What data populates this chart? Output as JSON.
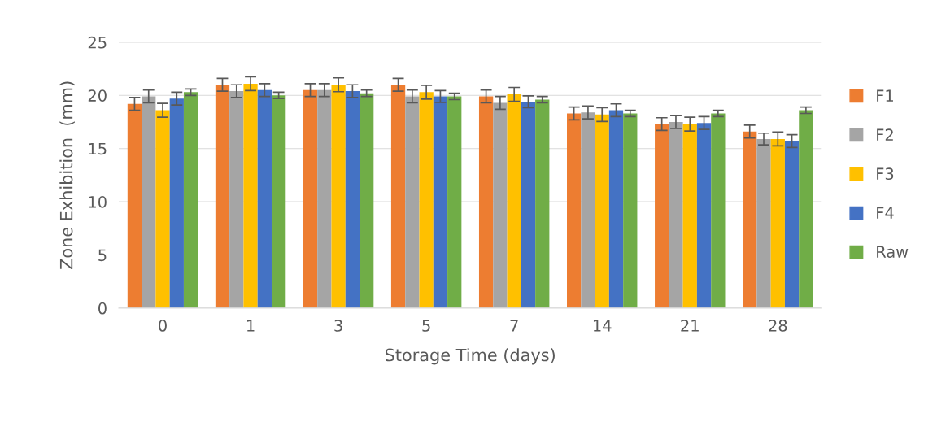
{
  "chart_data": {
    "type": "bar",
    "xlabel": "Storage Time (days)",
    "ylabel": "Zone Exhibition  (mm)",
    "categories": [
      "0",
      "1",
      "3",
      "5",
      "7",
      "14",
      "21",
      "28"
    ],
    "series": [
      {
        "name": "F1",
        "color": "#ed7d31",
        "values": [
          19.2,
          21.0,
          20.5,
          21.0,
          19.9,
          18.3,
          17.3,
          16.6
        ],
        "errors": [
          0.6,
          0.6,
          0.6,
          0.6,
          0.6,
          0.6,
          0.6,
          0.6
        ]
      },
      {
        "name": "F2",
        "color": "#a5a5a5",
        "values": [
          19.9,
          20.4,
          20.5,
          19.9,
          19.3,
          18.4,
          17.5,
          15.9
        ],
        "errors": [
          0.6,
          0.6,
          0.6,
          0.6,
          0.6,
          0.6,
          0.6,
          0.55
        ]
      },
      {
        "name": "F3",
        "color": "#ffc000",
        "values": [
          18.6,
          21.1,
          21.0,
          20.3,
          20.1,
          18.2,
          17.3,
          15.9
        ],
        "errors": [
          0.65,
          0.65,
          0.65,
          0.65,
          0.65,
          0.65,
          0.65,
          0.65
        ]
      },
      {
        "name": "F4",
        "color": "#4472c4",
        "values": [
          19.7,
          20.5,
          20.4,
          19.9,
          19.4,
          18.6,
          17.4,
          15.7
        ],
        "errors": [
          0.6,
          0.6,
          0.6,
          0.55,
          0.55,
          0.6,
          0.6,
          0.6
        ]
      },
      {
        "name": "Raw",
        "color": "#70ad47",
        "values": [
          20.3,
          20.0,
          20.2,
          19.9,
          19.6,
          18.3,
          18.3,
          18.6
        ],
        "errors": [
          0.3,
          0.3,
          0.3,
          0.3,
          0.3,
          0.3,
          0.3,
          0.3
        ]
      }
    ],
    "ylim": [
      0,
      25
    ],
    "yticks": [
      0,
      5,
      10,
      15,
      20,
      25
    ],
    "grid": "y",
    "legend": "right"
  }
}
